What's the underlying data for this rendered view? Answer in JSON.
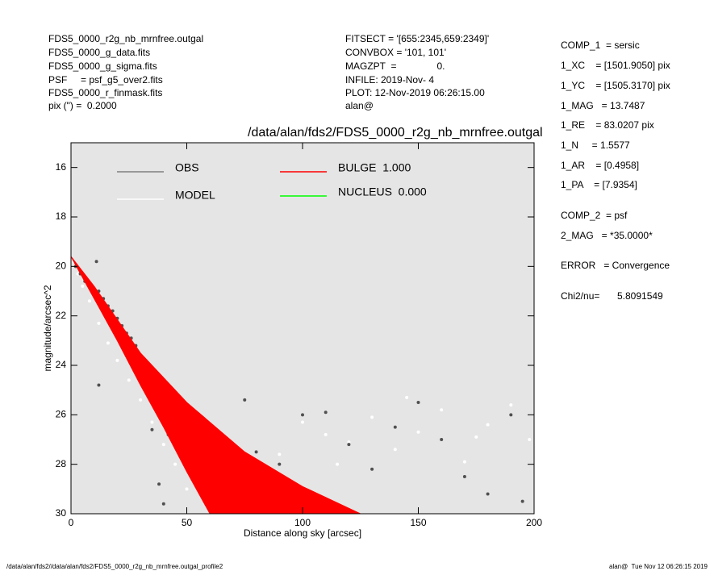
{
  "header": {
    "left": [
      "FDS5_0000_r2g_nb_mrnfree.outgal",
      "FDS5_0000_g_data.fits",
      "FDS5_0000_g_sigma.fits",
      "PSF     = psf_g5_over2.fits",
      "FDS5_0000_r_finmask.fits",
      "pix (\") =  0.2000"
    ],
    "middle": [
      "FITSECT = '[655:2345,659:2349]'",
      "CONVBOX = '101, 101'",
      "MAGZPT  =               0.",
      "INFILE: 2019-Nov- 4",
      "PLOT: 12-Nov-2019 06:26:15.00",
      "alan@"
    ]
  },
  "params": [
    "COMP_1  = sersic",
    "1_XC    = [1501.9050] pix",
    "1_YC    = [1505.3170] pix",
    "1_MAG   = 13.7487",
    "1_RE    = 83.0207 pix",
    "1_N     = 1.5577",
    "1_AR    = [0.4958]",
    "1_PA    = [7.9354]",
    "COMP_2  = psf",
    "2_MAG   = *35.0000*",
    "ERROR   = Convergence",
    "Chi2/nu="
  ],
  "chi2": "5.8091549",
  "footer": {
    "left": "/data/alan/fds2//data/alan/fds2/FDS5_0000_r2g_nb_mrnfree.outgal_profile2",
    "right": "alan@  Tue Nov 12 06:26:15 2019"
  },
  "chart_data": {
    "type": "scatter",
    "title": "/data/alan/fds2/FDS5_0000_r2g_nb_mrnfree.outgal",
    "xlabel": "Distance along sky [arcsec]",
    "ylabel": "magnitude/arcsec^2",
    "xlim": [
      0,
      200
    ],
    "ylim": [
      30,
      15
    ],
    "xticks": [
      0,
      50,
      100,
      150,
      200
    ],
    "yticks": [
      16,
      18,
      20,
      22,
      24,
      26,
      28,
      30
    ],
    "background": "#e5e5e5",
    "series": [
      {
        "name": "OBS",
        "color": "#808080",
        "marker_color": "#505050",
        "x": [
          2,
          4,
          6,
          8,
          10,
          11,
          12,
          14,
          16,
          18,
          20,
          22,
          24,
          26,
          28,
          30,
          12,
          35,
          40,
          45,
          50,
          60,
          70,
          80,
          90,
          100,
          110,
          120,
          130,
          140,
          150,
          160,
          170,
          180,
          190,
          195,
          38,
          55,
          75,
          42
        ],
        "values": [
          20.0,
          20.3,
          20.6,
          20.8,
          20.9,
          19.8,
          21.0,
          21.3,
          21.6,
          21.8,
          22.1,
          22.4,
          22.7,
          22.9,
          23.2,
          24.5,
          24.8,
          26.6,
          29.6,
          25.7,
          27.8,
          29.5,
          28.9,
          27.5,
          28.0,
          26.0,
          25.9,
          27.2,
          28.2,
          26.5,
          25.5,
          27.0,
          28.5,
          29.2,
          26.0,
          29.5,
          28.8,
          28.3,
          25.4,
          26.8
        ]
      },
      {
        "name": "MODEL",
        "color": "#ffffff",
        "marker_color": "#ffffff",
        "x": [
          1,
          3,
          5,
          8,
          12,
          16,
          20,
          25,
          30,
          35,
          40,
          45,
          50,
          60,
          70,
          80,
          90,
          100,
          110,
          120,
          130,
          140,
          150,
          160,
          170,
          180,
          190,
          198,
          60,
          85,
          115,
          145,
          175
        ],
        "values": [
          19.8,
          20.3,
          20.8,
          21.4,
          22.3,
          23.1,
          23.8,
          24.6,
          25.4,
          26.3,
          27.2,
          28.0,
          29.0,
          29.8,
          29.3,
          28.8,
          27.6,
          26.3,
          26.8,
          27.1,
          26.1,
          27.4,
          26.7,
          25.8,
          27.9,
          26.4,
          25.6,
          27.0,
          28.2,
          29.6,
          28.0,
          25.3,
          26.9
        ]
      },
      {
        "name": "BULGE  1.000",
        "color": "#ff0000",
        "band": true,
        "x": [
          0,
          10,
          30,
          50,
          75,
          100,
          125
        ],
        "values": [
          19.6,
          20.8,
          23.5,
          25.5,
          27.5,
          28.9,
          30
        ],
        "x_low": [
          0,
          10,
          20,
          30,
          40,
          50,
          60
        ],
        "values_low": [
          19.6,
          21.3,
          23.0,
          24.8,
          26.5,
          28.3,
          30
        ]
      },
      {
        "name": "NUCLEUS  0.000",
        "color": "#00ff00"
      }
    ]
  }
}
